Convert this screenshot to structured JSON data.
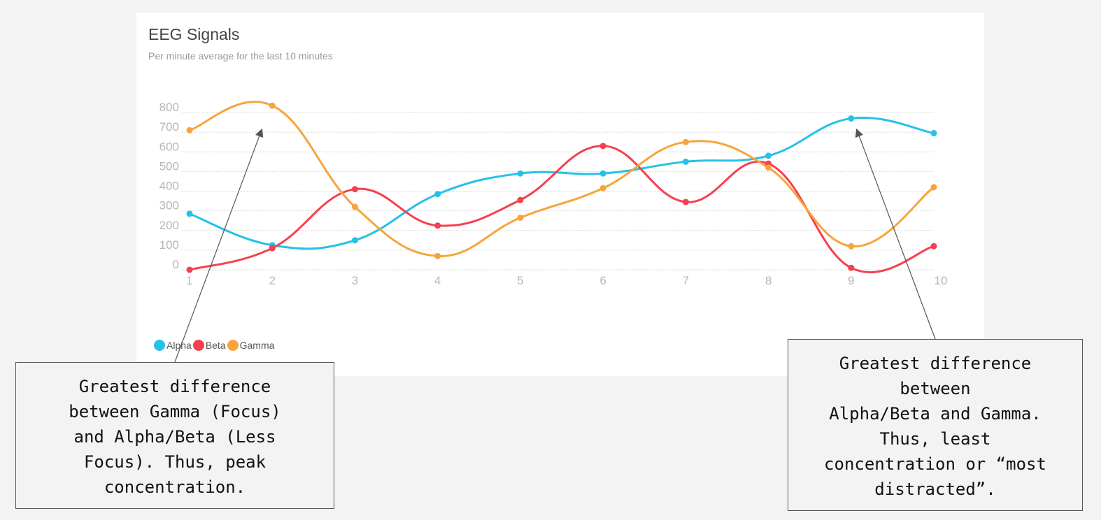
{
  "chart_data": {
    "type": "line",
    "title": "EEG Signals",
    "subtitle": "Per minute average for the last 10 minutes",
    "x": [
      1,
      2,
      3,
      4,
      5,
      6,
      7,
      8,
      9,
      10
    ],
    "yticks": [
      0,
      100,
      200,
      300,
      400,
      500,
      600,
      700,
      800
    ],
    "ylim": [
      0,
      800
    ],
    "grid": true,
    "legend": "bottom-left",
    "series": [
      {
        "name": "Alpha",
        "color": "#26c1e8",
        "values": [
          285,
          125,
          150,
          385,
          490,
          490,
          550,
          580,
          770,
          695
        ]
      },
      {
        "name": "Beta",
        "color": "#f5404f",
        "values": [
          0,
          110,
          410,
          225,
          355,
          630,
          345,
          540,
          10,
          120
        ]
      },
      {
        "name": "Gamma",
        "color": "#f8a43c",
        "values": [
          710,
          835,
          320,
          70,
          265,
          415,
          650,
          520,
          120,
          420
        ]
      }
    ]
  },
  "annotations": {
    "left": "Greatest difference\nbetween Gamma (Focus)\nand Alpha/Beta (Less\nFocus). Thus, peak\nconcentration.",
    "right": "Greatest difference\nbetween\nAlpha/Beta and Gamma.\nThus, least\nconcentration or “most\ndistracted”."
  }
}
